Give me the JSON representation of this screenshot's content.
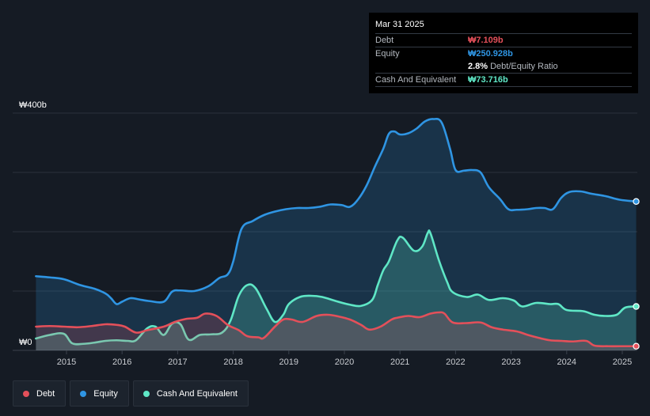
{
  "chart_data": {
    "type": "area",
    "ylim": [
      0,
      400
    ],
    "xlim": [
      2014.45,
      2025.25
    ],
    "y_ticks": [
      {
        "value": 400,
        "label": "₩400b"
      },
      {
        "value": 0,
        "label": "₩0"
      }
    ],
    "x_ticks": [
      2015,
      2016,
      2017,
      2018,
      2019,
      2020,
      2021,
      2022,
      2023,
      2024,
      2025
    ],
    "x_tick_labels": [
      "2015",
      "2016",
      "2017",
      "2018",
      "2019",
      "2020",
      "2021",
      "2022",
      "2023",
      "2024",
      "2025"
    ],
    "gridlines": [
      0,
      100,
      200,
      300,
      400
    ],
    "series": [
      {
        "name": "Equity",
        "key": "equity",
        "color": "#2f95e3",
        "fill": "rgba(47,149,227,0.20)",
        "points": [
          [
            2014.45,
            125
          ],
          [
            2014.7,
            123
          ],
          [
            2014.95,
            120
          ],
          [
            2015.25,
            110
          ],
          [
            2015.5,
            104
          ],
          [
            2015.7,
            96
          ],
          [
            2015.8,
            88
          ],
          [
            2015.9,
            78
          ],
          [
            2016.0,
            82
          ],
          [
            2016.15,
            88
          ],
          [
            2016.3,
            86
          ],
          [
            2016.5,
            83
          ],
          [
            2016.75,
            82
          ],
          [
            2016.9,
            99
          ],
          [
            2017.05,
            101
          ],
          [
            2017.3,
            100
          ],
          [
            2017.55,
            108
          ],
          [
            2017.75,
            122
          ],
          [
            2017.9,
            128
          ],
          [
            2018.0,
            150
          ],
          [
            2018.15,
            205
          ],
          [
            2018.35,
            218
          ],
          [
            2018.55,
            228
          ],
          [
            2018.75,
            234
          ],
          [
            2018.95,
            238
          ],
          [
            2019.15,
            240
          ],
          [
            2019.35,
            240
          ],
          [
            2019.55,
            242
          ],
          [
            2019.75,
            246
          ],
          [
            2019.95,
            245
          ],
          [
            2020.1,
            242
          ],
          [
            2020.25,
            255
          ],
          [
            2020.4,
            278
          ],
          [
            2020.55,
            310
          ],
          [
            2020.7,
            340
          ],
          [
            2020.8,
            365
          ],
          [
            2020.9,
            369
          ],
          [
            2021.0,
            364
          ],
          [
            2021.15,
            366
          ],
          [
            2021.3,
            374
          ],
          [
            2021.45,
            386
          ],
          [
            2021.6,
            390
          ],
          [
            2021.75,
            384
          ],
          [
            2021.9,
            340
          ],
          [
            2022.0,
            304
          ],
          [
            2022.15,
            303
          ],
          [
            2022.3,
            304
          ],
          [
            2022.45,
            300
          ],
          [
            2022.6,
            275
          ],
          [
            2022.8,
            255
          ],
          [
            2022.95,
            238
          ],
          [
            2023.1,
            237
          ],
          [
            2023.3,
            238
          ],
          [
            2023.45,
            240
          ],
          [
            2023.6,
            240
          ],
          [
            2023.75,
            238
          ],
          [
            2023.9,
            257
          ],
          [
            2024.05,
            267
          ],
          [
            2024.25,
            268
          ],
          [
            2024.45,
            264
          ],
          [
            2024.7,
            260
          ],
          [
            2024.95,
            254
          ],
          [
            2025.25,
            251
          ]
        ]
      },
      {
        "name": "Cash And Equivalent",
        "key": "cash",
        "color": "#5fe7c6",
        "fill": "rgba(95,231,198,0.22)",
        "points": [
          [
            2014.45,
            20
          ],
          [
            2014.7,
            26
          ],
          [
            2014.95,
            28
          ],
          [
            2015.1,
            12
          ],
          [
            2015.3,
            11
          ],
          [
            2015.5,
            13
          ],
          [
            2015.7,
            16
          ],
          [
            2015.9,
            17
          ],
          [
            2016.1,
            16
          ],
          [
            2016.25,
            17
          ],
          [
            2016.45,
            37
          ],
          [
            2016.6,
            40
          ],
          [
            2016.75,
            26
          ],
          [
            2016.9,
            45
          ],
          [
            2017.05,
            44
          ],
          [
            2017.2,
            18
          ],
          [
            2017.4,
            26
          ],
          [
            2017.6,
            27
          ],
          [
            2017.8,
            30
          ],
          [
            2017.95,
            50
          ],
          [
            2018.1,
            92
          ],
          [
            2018.25,
            110
          ],
          [
            2018.4,
            105
          ],
          [
            2018.6,
            70
          ],
          [
            2018.75,
            48
          ],
          [
            2018.9,
            60
          ],
          [
            2019.0,
            78
          ],
          [
            2019.2,
            90
          ],
          [
            2019.4,
            92
          ],
          [
            2019.6,
            90
          ],
          [
            2019.85,
            83
          ],
          [
            2020.1,
            77
          ],
          [
            2020.3,
            75
          ],
          [
            2020.5,
            85
          ],
          [
            2020.6,
            110
          ],
          [
            2020.7,
            135
          ],
          [
            2020.8,
            150
          ],
          [
            2020.95,
            185
          ],
          [
            2021.05,
            190
          ],
          [
            2021.25,
            168
          ],
          [
            2021.4,
            175
          ],
          [
            2021.5,
            198
          ],
          [
            2021.55,
            197
          ],
          [
            2021.7,
            152
          ],
          [
            2021.85,
            115
          ],
          [
            2021.95,
            98
          ],
          [
            2022.2,
            90
          ],
          [
            2022.4,
            94
          ],
          [
            2022.6,
            85
          ],
          [
            2022.85,
            88
          ],
          [
            2023.05,
            84
          ],
          [
            2023.2,
            74
          ],
          [
            2023.45,
            80
          ],
          [
            2023.7,
            78
          ],
          [
            2023.85,
            78
          ],
          [
            2024.0,
            68
          ],
          [
            2024.3,
            66
          ],
          [
            2024.5,
            60
          ],
          [
            2024.7,
            58
          ],
          [
            2024.9,
            60
          ],
          [
            2025.05,
            72
          ],
          [
            2025.25,
            74
          ]
        ]
      },
      {
        "name": "Debt",
        "key": "debt",
        "color": "#e4505a",
        "fill": "rgba(228,80,90,0.20)",
        "points": [
          [
            2014.45,
            40
          ],
          [
            2014.7,
            41
          ],
          [
            2014.95,
            40
          ],
          [
            2015.2,
            39
          ],
          [
            2015.45,
            41
          ],
          [
            2015.7,
            44
          ],
          [
            2015.9,
            43
          ],
          [
            2016.05,
            40
          ],
          [
            2016.25,
            30
          ],
          [
            2016.45,
            34
          ],
          [
            2016.75,
            40
          ],
          [
            2016.95,
            48
          ],
          [
            2017.15,
            53
          ],
          [
            2017.35,
            55
          ],
          [
            2017.5,
            62
          ],
          [
            2017.7,
            58
          ],
          [
            2017.9,
            43
          ],
          [
            2018.1,
            34
          ],
          [
            2018.25,
            24
          ],
          [
            2018.45,
            22
          ],
          [
            2018.55,
            21
          ],
          [
            2018.75,
            40
          ],
          [
            2018.9,
            52
          ],
          [
            2019.05,
            52
          ],
          [
            2019.25,
            48
          ],
          [
            2019.5,
            58
          ],
          [
            2019.7,
            60
          ],
          [
            2019.9,
            57
          ],
          [
            2020.1,
            52
          ],
          [
            2020.3,
            43
          ],
          [
            2020.45,
            35
          ],
          [
            2020.65,
            40
          ],
          [
            2020.85,
            52
          ],
          [
            2020.95,
            55
          ],
          [
            2021.15,
            58
          ],
          [
            2021.35,
            56
          ],
          [
            2021.55,
            62
          ],
          [
            2021.7,
            64
          ],
          [
            2021.8,
            62
          ],
          [
            2021.95,
            47
          ],
          [
            2022.2,
            46
          ],
          [
            2022.45,
            47
          ],
          [
            2022.65,
            39
          ],
          [
            2022.85,
            35
          ],
          [
            2023.1,
            32
          ],
          [
            2023.3,
            26
          ],
          [
            2023.5,
            21
          ],
          [
            2023.7,
            17
          ],
          [
            2023.9,
            16
          ],
          [
            2024.1,
            15
          ],
          [
            2024.35,
            16
          ],
          [
            2024.5,
            8
          ],
          [
            2024.75,
            7
          ],
          [
            2024.95,
            7
          ],
          [
            2025.25,
            7
          ]
        ]
      }
    ]
  },
  "tooltip": {
    "date": "Mar 31 2025",
    "debt_label": "Debt",
    "debt_value": "₩7.109b",
    "equity_label": "Equity",
    "equity_value": "₩250.928b",
    "ratio_value": "2.8%",
    "ratio_label": "Debt/Equity Ratio",
    "cash_label": "Cash And Equivalent",
    "cash_value": "₩73.716b"
  },
  "legend": {
    "debt": "Debt",
    "equity": "Equity",
    "cash": "Cash And Equivalent"
  },
  "colors": {
    "debt": "#e4505a",
    "equity": "#2f95e3",
    "cash": "#5fe7c6",
    "background": "#151b24"
  }
}
